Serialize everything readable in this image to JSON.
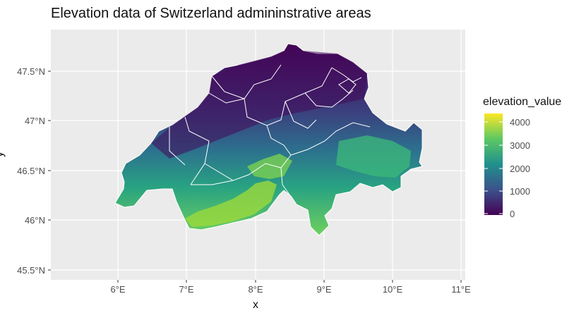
{
  "title": "Elevation data of Switzerland admininstrative areas",
  "axes": {
    "x_title": "x",
    "y_title": "y",
    "x_ticks": [
      "6°E",
      "7°E",
      "8°E",
      "9°E",
      "10°E",
      "11°E"
    ],
    "y_ticks": [
      "47.5°N",
      "47°N",
      "46.5°N",
      "46°N",
      "45.5°N"
    ]
  },
  "legend": {
    "title": "elevation_value",
    "ticks": [
      "4000",
      "3000",
      "2000",
      "1000",
      "0"
    ],
    "colors": [
      "#440154",
      "#3b528b",
      "#21908d",
      "#5dc863",
      "#fde725"
    ]
  },
  "colors": {
    "panel": "#ebebeb",
    "grid": "#ffffff",
    "borders": "#ffffff"
  }
}
